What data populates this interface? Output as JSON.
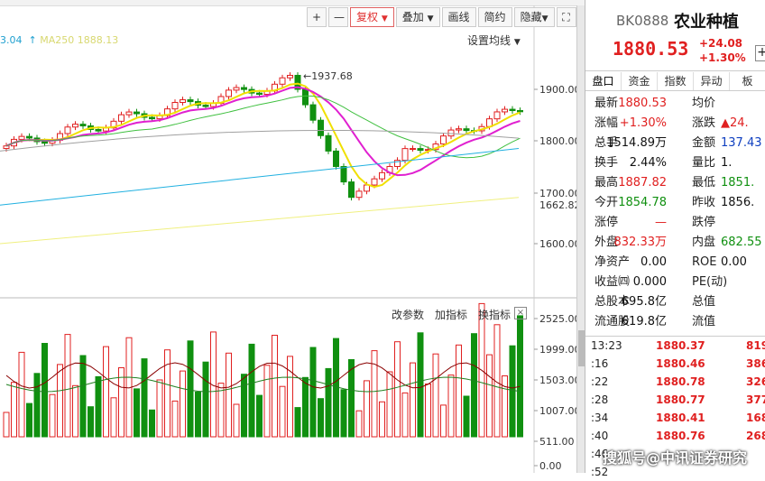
{
  "toolbar": {
    "plus": "+",
    "minus": "—",
    "fuquan": "复权",
    "diejia": "叠加",
    "huaxian": "画线",
    "jianyue": "简约",
    "yincang": "隐藏",
    "fullscreen_icon": "expand-icon"
  },
  "ma_legend": {
    "ma_a": "3.04",
    "ma_b": "MA250 1888.13"
  },
  "set_ma": "设置均线",
  "peak_label": "1937.68",
  "last_price_label": "1662.82",
  "indicator_bar": {
    "change_param": "改参数",
    "add_indicator": "加指标",
    "switch_indicator": "换指标",
    "close": "×"
  },
  "price_axis": [
    "1900.00",
    "1800.00",
    "1700.00",
    "1600.00"
  ],
  "volume_axis": [
    "2525.00",
    "1999.00",
    "1503.00",
    "1007.00",
    "511.00",
    "0.00"
  ],
  "stock": {
    "code": "BK0888",
    "name": "农业种植",
    "price": "1880.53",
    "change": "+24.08",
    "change_pct": "+1.30%",
    "add": "+"
  },
  "tabs": [
    "盘口",
    "资金",
    "指数",
    "异动",
    "板"
  ],
  "quotes": [
    {
      "l1": "最新",
      "v1": "1880.53",
      "c1": "red",
      "l2": "均价",
      "v2": "",
      "c2": "blk"
    },
    {
      "l1": "涨幅",
      "v1": "+1.30%",
      "c1": "red",
      "l2": "涨跌",
      "v2": "▲24.",
      "c2": "red"
    },
    {
      "l1": "总手",
      "v1": "1514.89万",
      "c1": "blk",
      "l2": "金额",
      "v2": "137.43",
      "c2": "blue"
    },
    {
      "l1": "换手",
      "v1": "2.44%",
      "c1": "blk",
      "l2": "量比",
      "v2": "1.",
      "c2": "blk"
    },
    {
      "l1": "最高",
      "v1": "1887.82",
      "c1": "red",
      "l2": "最低",
      "v2": "1851.",
      "c2": "green"
    },
    {
      "l1": "今开",
      "v1": "1854.78",
      "c1": "green",
      "l2": "昨收",
      "v2": "1856.",
      "c2": "blk"
    },
    {
      "l1": "涨停",
      "v1": "—",
      "c1": "red",
      "l2": "跌停",
      "v2": "",
      "c2": "blk"
    },
    {
      "l1": "外盘",
      "v1": "832.33万",
      "c1": "red",
      "l2": "内盘",
      "v2": "682.55",
      "c2": "green"
    },
    {
      "l1": "净资产",
      "v1": "0.00",
      "c1": "blk",
      "l2": "ROE",
      "v2": "0.00",
      "c2": "blk"
    },
    {
      "l1": "收益㈣",
      "v1": "0.000",
      "c1": "blk",
      "l2": "PE(动)",
      "v2": "",
      "c2": "blk"
    },
    {
      "l1": "总股本",
      "v1": "695.8亿",
      "c1": "blk",
      "l2": "总值",
      "v2": "",
      "c2": "blk"
    },
    {
      "l1": "流通股",
      "v1": "619.8亿",
      "c1": "blk",
      "l2": "流值",
      "v2": "",
      "c2": "blk"
    }
  ],
  "trades": [
    {
      "t": "13:23",
      "p": "1880.37",
      "v": "819"
    },
    {
      "t": ":16",
      "p": "1880.46",
      "v": "386"
    },
    {
      "t": ":22",
      "p": "1880.78",
      "v": "326"
    },
    {
      "t": ":28",
      "p": "1880.77",
      "v": "377"
    },
    {
      "t": ":34",
      "p": "1880.41",
      "v": "168"
    },
    {
      "t": ":40",
      "p": "1880.76",
      "v": "268"
    },
    {
      "t": ":46",
      "p": "",
      "v": ""
    },
    {
      "t": ":52",
      "p": "",
      "v": ""
    }
  ],
  "watermark": "搜狐号@中讯证券研究",
  "colors": {
    "up": "#e02020",
    "down": "#109010",
    "ma5": "#f0e000",
    "ma10": "#e020d0",
    "ma20": "#40c040",
    "ma60": "#a0a0a0",
    "ma120": "#20b0e0",
    "ma250": "#f0f080"
  }
}
